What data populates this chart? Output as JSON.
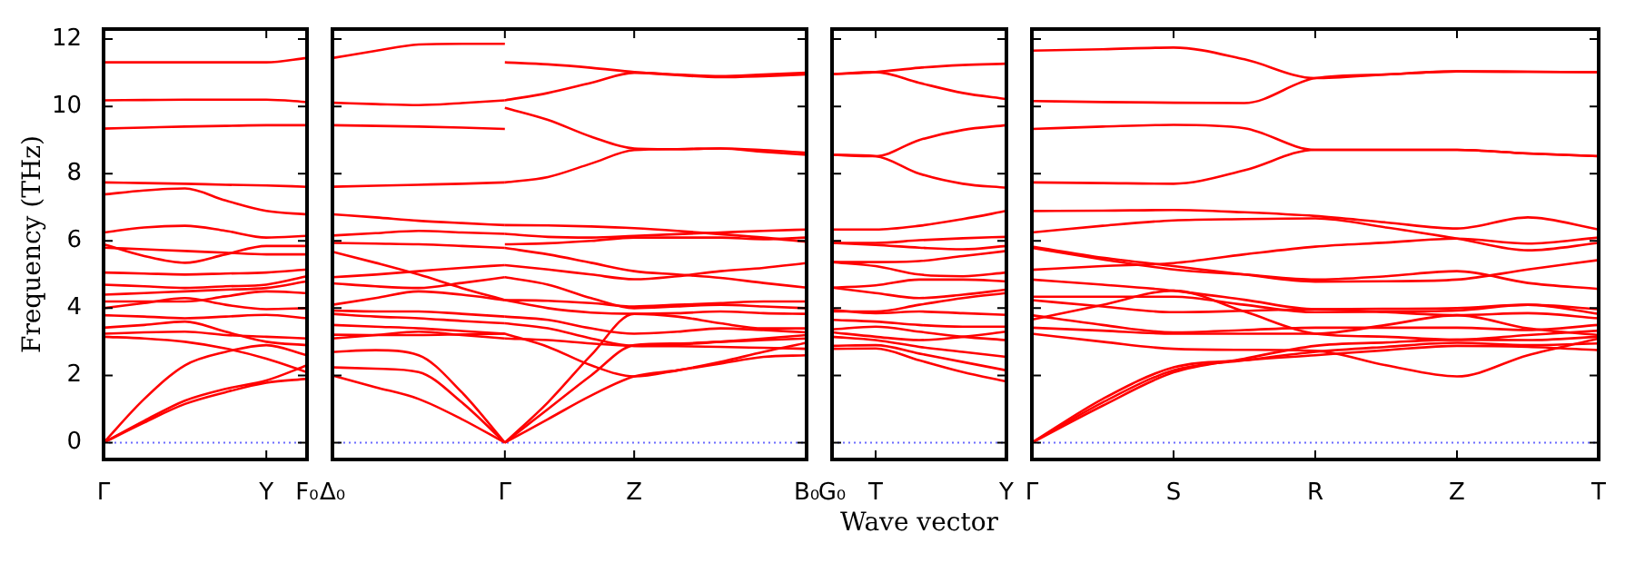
{
  "chart_data": [
    {
      "type": "line",
      "ylabel": "Frequency (THz)",
      "ylim": [
        -0.5,
        12.3
      ],
      "categories": [
        "Γ",
        null,
        null,
        null,
        "Y",
        "F₀"
      ],
      "yticks": [
        0,
        2,
        4,
        6,
        8,
        10,
        12
      ],
      "ref_lines": [
        {
          "axis": "y",
          "value": 0,
          "color": "#6b6bff",
          "line_style": "dotted"
        }
      ],
      "series": [
        {
          "color": "#ff0000",
          "values": [
            0,
            0.6,
            1.15,
            1.5,
            1.78,
            1.9
          ]
        },
        {
          "color": "#ff0000",
          "values": [
            0,
            0.65,
            1.25,
            1.6,
            1.85,
            2.3
          ]
        },
        {
          "color": "#ff0000",
          "values": [
            0,
            1.3,
            2.3,
            2.7,
            2.9,
            2.6
          ]
        },
        {
          "color": "#ff0000",
          "values": [
            3.15,
            3.1,
            3.0,
            2.8,
            2.5,
            2.1
          ]
        },
        {
          "color": "#ff0000",
          "values": [
            3.24,
            3.28,
            3.3,
            3.2,
            3.15,
            3.1
          ]
        },
        {
          "color": "#ff0000",
          "values": [
            3.42,
            3.5,
            3.6,
            3.3,
            3.0,
            2.9
          ]
        },
        {
          "color": "#ff0000",
          "values": [
            3.79,
            3.75,
            3.7,
            3.75,
            3.8,
            3.7
          ]
        },
        {
          "color": "#ff0000",
          "values": [
            4.0,
            4.15,
            4.3,
            4.1,
            3.97,
            4.0
          ]
        },
        {
          "color": "#ff0000",
          "values": [
            4.2,
            4.2,
            4.2,
            4.35,
            4.5,
            4.45
          ]
        },
        {
          "color": "#ff0000",
          "values": [
            4.4,
            4.45,
            4.5,
            4.55,
            4.6,
            4.8
          ]
        },
        {
          "color": "#ff0000",
          "values": [
            4.7,
            4.65,
            4.6,
            4.65,
            4.7,
            4.95
          ]
        },
        {
          "color": "#ff0000",
          "values": [
            5.06,
            5.03,
            5.0,
            5.03,
            5.06,
            5.15
          ]
        },
        {
          "color": "#ff0000",
          "values": [
            5.8,
            5.75,
            5.7,
            5.65,
            5.6,
            5.6
          ]
        },
        {
          "color": "#ff0000",
          "values": [
            5.9,
            5.55,
            5.35,
            5.6,
            5.85,
            5.85
          ]
        },
        {
          "color": "#ff0000",
          "values": [
            6.25,
            6.4,
            6.45,
            6.3,
            6.1,
            6.15
          ]
        },
        {
          "color": "#ff0000",
          "values": [
            7.38,
            7.5,
            7.56,
            7.2,
            6.89,
            6.79
          ]
        },
        {
          "color": "#ff0000",
          "values": [
            7.74,
            7.72,
            7.7,
            7.67,
            7.65,
            7.61
          ]
        },
        {
          "color": "#ff0000",
          "values": [
            9.34,
            9.37,
            9.4,
            9.42,
            9.44,
            9.44
          ]
        },
        {
          "color": "#ff0000",
          "values": [
            10.18,
            10.19,
            10.2,
            10.2,
            10.2,
            10.13
          ]
        },
        {
          "color": "#ff0000",
          "values": [
            11.31,
            11.31,
            11.31,
            11.31,
            11.31,
            11.44
          ]
        }
      ]
    },
    {
      "type": "line",
      "ylim": [
        -0.5,
        12.3
      ],
      "tick_labels": "x",
      "categories": [
        "Δ₀",
        null,
        null,
        null,
        "Γ",
        null,
        null,
        "Z",
        null,
        null,
        null,
        "B₀"
      ],
      "yticks": [
        0,
        2,
        4,
        6,
        8,
        10,
        12
      ],
      "ref_lines": [
        {
          "axis": "y",
          "value": 0,
          "color": "#6b6bff",
          "line_style": "dotted"
        }
      ],
      "series": [
        {
          "color": "#ff0000",
          "values": [
            11.44,
            11.65,
            11.84,
            11.86,
            11.86,
            null,
            null,
            null,
            null,
            null,
            null,
            null
          ]
        },
        {
          "color": "#ff0000",
          "values": [
            10.11,
            10.07,
            10.04,
            10.1,
            10.18,
            null,
            null,
            null,
            null,
            null,
            null,
            null
          ]
        },
        {
          "color": "#ff0000",
          "values": [
            9.44,
            9.42,
            9.4,
            9.37,
            9.33,
            null,
            null,
            null,
            null,
            null,
            null,
            null
          ]
        },
        {
          "color": "#ff0000",
          "values": [
            7.61,
            7.64,
            7.67,
            7.7,
            7.74,
            null,
            null,
            null,
            null,
            null,
            null,
            null
          ]
        },
        {
          "color": "#ff0000",
          "values": [
            6.79,
            6.7,
            6.6,
            6.53,
            6.47,
            null,
            null,
            null,
            null,
            null,
            null,
            null
          ]
        },
        {
          "color": "#ff0000",
          "values": [
            6.16,
            6.23,
            6.3,
            6.25,
            6.21,
            null,
            null,
            null,
            null,
            null,
            null,
            null
          ]
        },
        {
          "color": "#ff0000",
          "values": [
            5.94,
            5.92,
            5.9,
            5.85,
            5.79,
            null,
            null,
            null,
            null,
            null,
            null,
            null
          ]
        },
        {
          "color": "#ff0000",
          "values": [
            5.68,
            5.35,
            5.0,
            4.6,
            4.24,
            null,
            null,
            null,
            null,
            null,
            null,
            null
          ]
        },
        {
          "color": "#ff0000",
          "values": [
            4.92,
            5.0,
            5.1,
            5.2,
            5.28,
            null,
            null,
            null,
            null,
            null,
            null,
            null
          ]
        },
        {
          "color": "#ff0000",
          "values": [
            4.74,
            4.65,
            4.6,
            4.75,
            4.92,
            null,
            null,
            null,
            null,
            null,
            null,
            null
          ]
        },
        {
          "color": "#ff0000",
          "values": [
            4.1,
            4.3,
            4.5,
            4.4,
            4.24,
            null,
            null,
            null,
            null,
            null,
            null,
            null
          ]
        },
        {
          "color": "#ff0000",
          "values": [
            3.93,
            3.9,
            3.9,
            3.83,
            3.75,
            null,
            null,
            null,
            null,
            null,
            null,
            null
          ]
        },
        {
          "color": "#ff0000",
          "values": [
            3.83,
            3.75,
            3.7,
            3.62,
            3.55,
            null,
            null,
            null,
            null,
            null,
            null,
            null
          ]
        },
        {
          "color": "#ff0000",
          "values": [
            3.5,
            3.45,
            3.4,
            3.32,
            3.24,
            null,
            null,
            null,
            null,
            null,
            null,
            null
          ]
        },
        {
          "color": "#ff0000",
          "values": [
            3.21,
            3.2,
            3.2,
            3.22,
            3.24,
            null,
            null,
            null,
            null,
            null,
            null,
            null
          ]
        },
        {
          "color": "#ff0000",
          "values": [
            3.1,
            3.2,
            3.3,
            3.2,
            3.1,
            null,
            null,
            null,
            null,
            null,
            null,
            null
          ]
        },
        {
          "color": "#ff0000",
          "values": [
            2.7,
            2.75,
            2.6,
            1.5,
            0,
            null,
            null,
            null,
            null,
            null,
            null,
            null
          ]
        },
        {
          "color": "#ff0000",
          "values": [
            2.24,
            2.2,
            2.1,
            1.2,
            0,
            null,
            null,
            null,
            null,
            null,
            null,
            null
          ]
        },
        {
          "color": "#ff0000",
          "values": [
            2.0,
            1.65,
            1.3,
            0.7,
            0,
            null,
            null,
            null,
            null,
            null,
            null,
            null
          ]
        },
        {
          "color": "#ff0000",
          "values": [
            null,
            null,
            null,
            null,
            11.31,
            11.25,
            11.15,
            11.02,
            10.93,
            10.87,
            10.9,
            10.95
          ]
        },
        {
          "color": "#ff0000",
          "values": [
            null,
            null,
            null,
            null,
            10.18,
            10.4,
            10.7,
            11.0,
            10.95,
            10.9,
            10.95,
            11.0
          ]
        },
        {
          "color": "#ff0000",
          "values": [
            null,
            null,
            null,
            null,
            9.96,
            9.6,
            9.1,
            8.75,
            8.73,
            8.75,
            8.7,
            8.62
          ]
        },
        {
          "color": "#ff0000",
          "values": [
            null,
            null,
            null,
            null,
            7.74,
            7.9,
            8.3,
            8.7,
            8.73,
            8.75,
            8.65,
            8.56
          ]
        },
        {
          "color": "#ff0000",
          "values": [
            null,
            null,
            null,
            null,
            6.47,
            6.46,
            6.43,
            6.38,
            6.3,
            6.2,
            6.1,
            5.97
          ]
        },
        {
          "color": "#ff0000",
          "values": [
            null,
            null,
            null,
            null,
            6.21,
            6.12,
            6.1,
            6.15,
            6.2,
            6.25,
            6.3,
            6.34
          ]
        },
        {
          "color": "#ff0000",
          "values": [
            null,
            null,
            null,
            null,
            5.9,
            5.93,
            6.0,
            6.1,
            6.1,
            6.1,
            6.05,
            6.1
          ]
        },
        {
          "color": "#ff0000",
          "values": [
            null,
            null,
            null,
            null,
            5.79,
            5.6,
            5.35,
            5.1,
            5.0,
            4.9,
            4.75,
            4.61
          ]
        },
        {
          "color": "#ff0000",
          "values": [
            null,
            null,
            null,
            null,
            5.28,
            5.15,
            5.0,
            4.86,
            4.95,
            5.1,
            5.2,
            5.34
          ]
        },
        {
          "color": "#ff0000",
          "values": [
            null,
            null,
            null,
            null,
            4.92,
            4.7,
            4.3,
            4.0,
            4.05,
            4.1,
            4.05,
            4.0
          ]
        },
        {
          "color": "#ff0000",
          "values": [
            null,
            null,
            null,
            null,
            4.24,
            4.22,
            4.15,
            4.05,
            4.1,
            4.15,
            4.2,
            4.2
          ]
        },
        {
          "color": "#ff0000",
          "values": [
            null,
            null,
            null,
            null,
            4.24,
            4.0,
            3.87,
            3.83,
            3.85,
            3.9,
            3.85,
            3.83
          ]
        },
        {
          "color": "#ff0000",
          "values": [
            null,
            null,
            null,
            null,
            3.75,
            3.65,
            3.4,
            3.24,
            3.3,
            3.4,
            3.35,
            3.28
          ]
        },
        {
          "color": "#ff0000",
          "values": [
            null,
            null,
            null,
            null,
            3.55,
            3.4,
            3.1,
            2.88,
            2.92,
            3.0,
            3.1,
            3.2
          ]
        },
        {
          "color": "#ff0000",
          "values": [
            null,
            null,
            null,
            null,
            3.24,
            2.85,
            2.3,
            1.97,
            2.15,
            2.4,
            2.7,
            2.97
          ]
        },
        {
          "color": "#ff0000",
          "values": [
            null,
            null,
            null,
            null,
            3.1,
            3.05,
            2.95,
            2.88,
            2.87,
            2.85,
            2.82,
            2.79
          ]
        },
        {
          "color": "#ff0000",
          "values": [
            null,
            null,
            null,
            null,
            0,
            1.2,
            2.6,
            3.83,
            3.75,
            3.55,
            3.4,
            3.4
          ]
        },
        {
          "color": "#ff0000",
          "values": [
            null,
            null,
            null,
            null,
            0,
            1.0,
            2.0,
            2.9,
            2.95,
            3.0,
            3.05,
            3.1
          ]
        },
        {
          "color": "#ff0000",
          "values": [
            null,
            null,
            null,
            null,
            0,
            0.7,
            1.4,
            1.97,
            2.15,
            2.35,
            2.55,
            2.6
          ]
        }
      ]
    },
    {
      "type": "line",
      "xlabel": "Wave vector",
      "ylim": [
        -0.5,
        12.3
      ],
      "tick_labels": "x",
      "categories": [
        "G₀",
        "T",
        null,
        null,
        "Y"
      ],
      "yticks": [
        0,
        2,
        4,
        6,
        8,
        10,
        12
      ],
      "ref_lines": [
        {
          "axis": "y",
          "value": 0,
          "color": "#6b6bff",
          "line_style": "dotted"
        }
      ],
      "series": [
        {
          "color": "#ff0000",
          "values": [
            10.96,
            11.02,
            11.15,
            11.23,
            11.27
          ]
        },
        {
          "color": "#ff0000",
          "values": [
            10.96,
            11.02,
            10.7,
            10.4,
            10.22
          ]
        },
        {
          "color": "#ff0000",
          "values": [
            8.56,
            8.52,
            9.0,
            9.3,
            9.44
          ]
        },
        {
          "color": "#ff0000",
          "values": [
            8.56,
            8.52,
            8.0,
            7.7,
            7.58
          ]
        },
        {
          "color": "#ff0000",
          "values": [
            6.34,
            6.34,
            6.45,
            6.65,
            6.89
          ]
        },
        {
          "color": "#ff0000",
          "values": [
            5.94,
            5.94,
            6.02,
            6.08,
            6.12
          ]
        },
        {
          "color": "#ff0000",
          "values": [
            5.94,
            5.88,
            5.8,
            5.75,
            5.85
          ]
        },
        {
          "color": "#ff0000",
          "values": [
            5.37,
            5.37,
            5.4,
            5.55,
            5.7
          ]
        },
        {
          "color": "#ff0000",
          "values": [
            5.37,
            5.25,
            5.0,
            4.95,
            5.06
          ]
        },
        {
          "color": "#ff0000",
          "values": [
            4.61,
            4.68,
            4.85,
            4.85,
            4.8
          ]
        },
        {
          "color": "#ff0000",
          "values": [
            4.61,
            4.45,
            4.3,
            4.4,
            4.55
          ]
        },
        {
          "color": "#ff0000",
          "values": [
            3.9,
            3.9,
            4.1,
            4.3,
            4.45
          ]
        },
        {
          "color": "#ff0000",
          "values": [
            3.95,
            3.85,
            3.9,
            3.85,
            3.8
          ]
        },
        {
          "color": "#ff0000",
          "values": [
            3.65,
            3.6,
            3.5,
            3.45,
            3.45
          ]
        },
        {
          "color": "#ff0000",
          "values": [
            3.37,
            3.45,
            3.3,
            3.15,
            3.05
          ]
        },
        {
          "color": "#ff0000",
          "values": [
            3.28,
            3.15,
            3.05,
            3.15,
            3.3
          ]
        },
        {
          "color": "#ff0000",
          "values": [
            3.15,
            3.05,
            2.85,
            2.7,
            2.55
          ]
        },
        {
          "color": "#ff0000",
          "values": [
            2.88,
            2.9,
            2.65,
            2.4,
            2.15
          ]
        },
        {
          "color": "#ff0000",
          "values": [
            2.79,
            2.8,
            2.45,
            2.1,
            1.82
          ]
        }
      ]
    },
    {
      "type": "line",
      "ylim": [
        -0.5,
        12.3
      ],
      "tick_labels": "x",
      "categories": [
        "Γ",
        null,
        "S",
        null,
        "R",
        null,
        "Z",
        null,
        "T"
      ],
      "yticks": [
        0,
        2,
        4,
        6,
        8,
        10,
        12
      ],
      "ref_lines": [
        {
          "axis": "y",
          "value": 0,
          "color": "#6b6bff",
          "line_style": "dotted"
        }
      ],
      "series": [
        {
          "color": "#ff0000",
          "values": [
            11.66,
            11.7,
            11.75,
            11.4,
            10.84,
            10.95,
            11.04,
            11.03,
            11.02
          ]
        },
        {
          "color": "#ff0000",
          "values": [
            10.16,
            10.13,
            10.11,
            10.1,
            10.84,
            10.95,
            11.04,
            11.03,
            11.02
          ]
        },
        {
          "color": "#ff0000",
          "values": [
            9.33,
            9.4,
            9.45,
            9.35,
            8.71,
            8.71,
            8.71,
            8.6,
            8.52
          ]
        },
        {
          "color": "#ff0000",
          "values": [
            7.74,
            7.72,
            7.7,
            8.1,
            8.71,
            8.71,
            8.71,
            8.6,
            8.52
          ]
        },
        {
          "color": "#ff0000",
          "values": [
            6.89,
            6.9,
            6.92,
            6.85,
            6.74,
            6.55,
            6.37,
            6.7,
            6.34
          ]
        },
        {
          "color": "#ff0000",
          "values": [
            6.25,
            6.45,
            6.61,
            6.65,
            6.67,
            6.4,
            6.07,
            5.72,
            5.94
          ]
        },
        {
          "color": "#ff0000",
          "values": [
            5.79,
            5.45,
            5.15,
            5.0,
            4.85,
            4.95,
            5.1,
            4.75,
            4.57
          ]
        },
        {
          "color": "#ff0000",
          "values": [
            5.83,
            5.5,
            5.25,
            5.0,
            4.79,
            4.8,
            4.85,
            5.15,
            5.43
          ]
        },
        {
          "color": "#ff0000",
          "values": [
            5.14,
            5.25,
            5.34,
            5.6,
            5.83,
            5.95,
            6.07,
            5.92,
            6.1
          ]
        },
        {
          "color": "#ff0000",
          "values": [
            4.85,
            4.7,
            4.52,
            4.25,
            3.97,
            3.98,
            4.0,
            4.1,
            3.97
          ]
        },
        {
          "color": "#ff0000",
          "values": [
            4.34,
            4.34,
            4.34,
            4.1,
            3.88,
            3.9,
            3.93,
            4.1,
            3.83
          ]
        },
        {
          "color": "#ff0000",
          "values": [
            4.24,
            4.05,
            3.88,
            3.92,
            3.97,
            3.88,
            3.79,
            3.85,
            3.7
          ]
        },
        {
          "color": "#ff0000",
          "values": [
            3.79,
            3.5,
            3.28,
            3.35,
            3.42,
            3.42,
            3.42,
            3.35,
            3.5
          ]
        },
        {
          "color": "#ff0000",
          "values": [
            3.66,
            4.1,
            4.52,
            3.9,
            3.24,
            3.15,
            3.06,
            3.2,
            3.33
          ]
        },
        {
          "color": "#ff0000",
          "values": [
            3.42,
            3.33,
            3.24,
            3.24,
            3.24,
            3.5,
            3.79,
            3.4,
            3.2
          ]
        },
        {
          "color": "#ff0000",
          "values": [
            3.24,
            3.0,
            2.79,
            2.76,
            2.73,
            2.3,
            1.97,
            2.6,
            3.1
          ]
        },
        {
          "color": "#ff0000",
          "values": [
            0,
            1.3,
            2.24,
            2.45,
            2.6,
            2.75,
            2.88,
            2.85,
            2.75
          ]
        },
        {
          "color": "#ff0000",
          "values": [
            0,
            1.2,
            2.15,
            2.45,
            2.7,
            2.85,
            2.97,
            2.9,
            2.95
          ]
        },
        {
          "color": "#ff0000",
          "values": [
            0,
            1.1,
            2.09,
            2.5,
            2.88,
            2.98,
            3.06,
            3.05,
            3.15
          ]
        }
      ]
    }
  ]
}
